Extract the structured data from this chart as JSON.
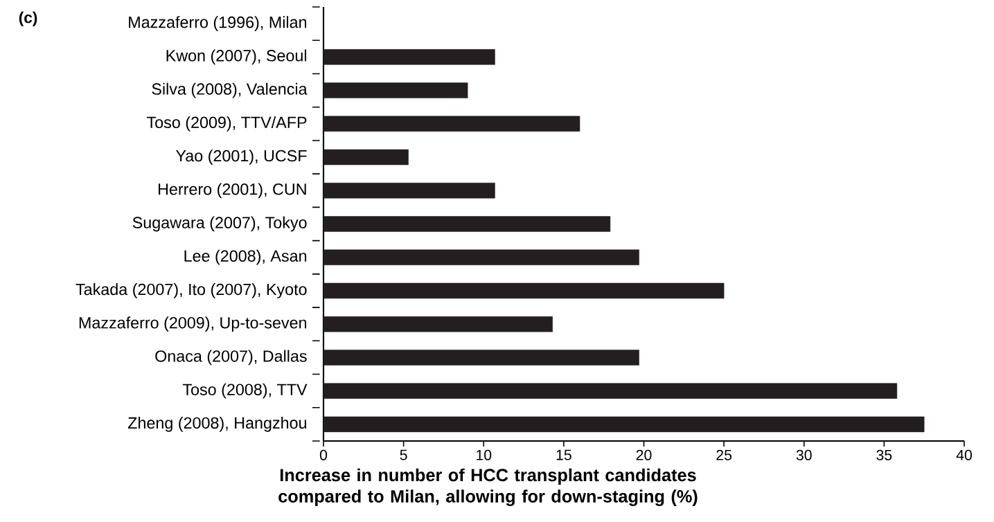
{
  "chart_data": {
    "type": "bar",
    "orientation": "horizontal",
    "annotations": [
      "(c)"
    ],
    "categories": [
      "Mazzaferro (1996), Milan",
      "Kwon (2007), Seoul",
      "Silva (2008), Valencia",
      "Toso (2009), TTV/AFP",
      "Yao (2001), UCSF",
      "Herrero (2001), CUN",
      "Sugawara (2007), Tokyo",
      "Lee (2008), Asan",
      "Takada (2007), Ito (2007), Kyoto",
      "Mazzaferro (2009), Up-to-seven",
      "Onaca (2007), Dallas",
      "Toso (2008), TTV",
      "Zheng (2008), Hangzhou"
    ],
    "values": [
      0,
      10.7,
      9.0,
      16.0,
      5.3,
      10.7,
      17.9,
      19.7,
      25.0,
      14.3,
      19.7,
      35.8,
      37.5
    ],
    "color": "#231f20",
    "xlabel": "Increase in number of HCC transplant candidates compared to Milan, allowing for down-staging (%)",
    "xlim": [
      0,
      40
    ],
    "xticks": [
      0,
      5,
      10,
      15,
      20,
      25,
      30,
      35,
      40
    ]
  }
}
